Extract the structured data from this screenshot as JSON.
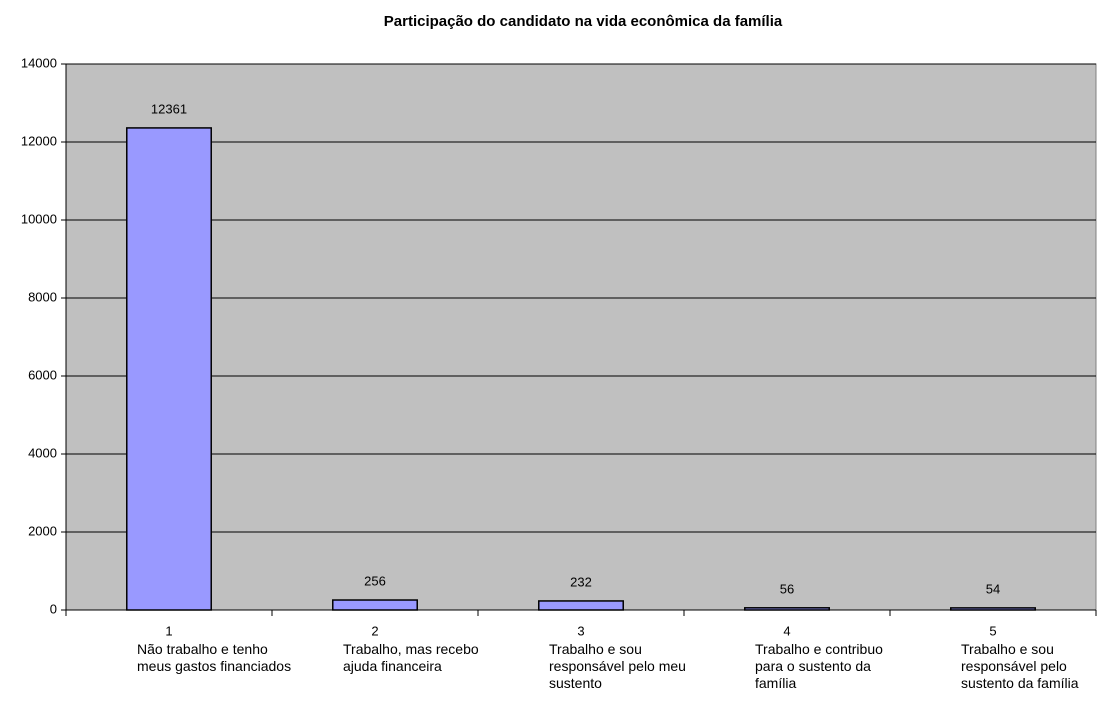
{
  "chart_data": {
    "type": "bar",
    "title": "Participação do candidato na vida econômica da família",
    "categories": [
      "1",
      "2",
      "3",
      "4",
      "5"
    ],
    "category_descriptions": [
      "Não trabalho e tenho meus gastos financiados",
      "Trabalho, mas recebo ajuda financeira",
      "Trabalho e sou responsável pelo meu sustento",
      "Trabalho e contribuo para o sustento da família",
      "Trabalho e sou responsável pelo sustento da família"
    ],
    "values": [
      12361,
      256,
      232,
      56,
      54
    ],
    "color": "#9999ff",
    "ylim": [
      0,
      14000
    ],
    "yticks": [
      0,
      2000,
      4000,
      6000,
      8000,
      10000,
      12000,
      14000
    ],
    "grid": true,
    "plot_background": "#c0c0c0"
  }
}
